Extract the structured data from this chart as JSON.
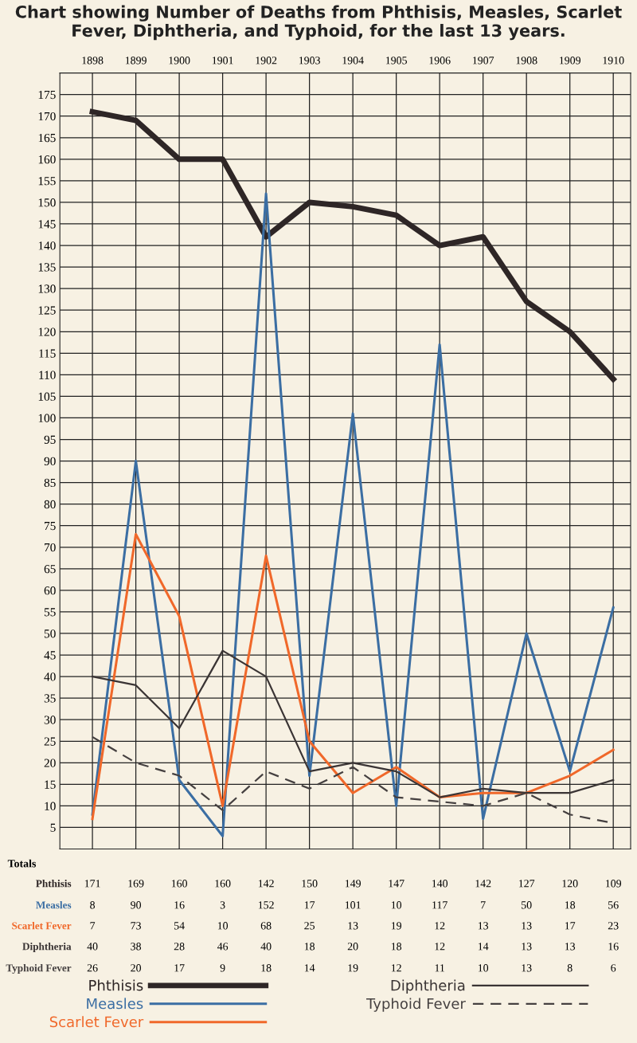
{
  "chart_data": {
    "type": "line",
    "title": "Chart showing Number of Deaths from Phthisis, Measles, Scarlet Fever, Diphtheria, and Typhoid, for the last 13 years.",
    "categories": [
      "1898",
      "1899",
      "1900",
      "1901",
      "1902",
      "1903",
      "1904",
      "1905",
      "1906",
      "1907",
      "1908",
      "1909",
      "1910"
    ],
    "series": [
      {
        "name": "Phthisis",
        "color": "#2e2626",
        "line_style": "solid",
        "values": [
          171,
          169,
          160,
          160,
          142,
          150,
          149,
          147,
          140,
          142,
          127,
          120,
          109
        ]
      },
      {
        "name": "Measles",
        "color": "#3b6ea3",
        "line_style": "solid",
        "values": [
          8,
          90,
          16,
          3,
          152,
          17,
          101,
          10,
          117,
          7,
          50,
          18,
          56
        ]
      },
      {
        "name": "Scarlet Fever",
        "color": "#f0682a",
        "line_style": "solid",
        "values": [
          7,
          73,
          54,
          10,
          68,
          25,
          13,
          19,
          12,
          13,
          13,
          17,
          23
        ]
      },
      {
        "name": "Diphtheria",
        "color": "#3a3434",
        "line_style": "solid",
        "values": [
          40,
          38,
          28,
          46,
          40,
          18,
          20,
          18,
          12,
          14,
          13,
          13,
          16
        ]
      },
      {
        "name": "Typhoid Fever",
        "color": "#454040",
        "line_style": "dashed",
        "values": [
          26,
          20,
          17,
          9,
          18,
          14,
          19,
          12,
          11,
          10,
          13,
          8,
          6
        ]
      }
    ],
    "ylim": [
      0,
      180
    ],
    "yticks": [
      5,
      10,
      15,
      20,
      25,
      30,
      35,
      40,
      45,
      50,
      55,
      60,
      65,
      70,
      75,
      80,
      85,
      90,
      95,
      100,
      105,
      110,
      115,
      120,
      125,
      130,
      135,
      140,
      145,
      150,
      155,
      160,
      165,
      170,
      175
    ],
    "grid": true,
    "legend": "bottom",
    "marker": "none",
    "data_labels": true,
    "annotations": [
      "Totals"
    ]
  }
}
